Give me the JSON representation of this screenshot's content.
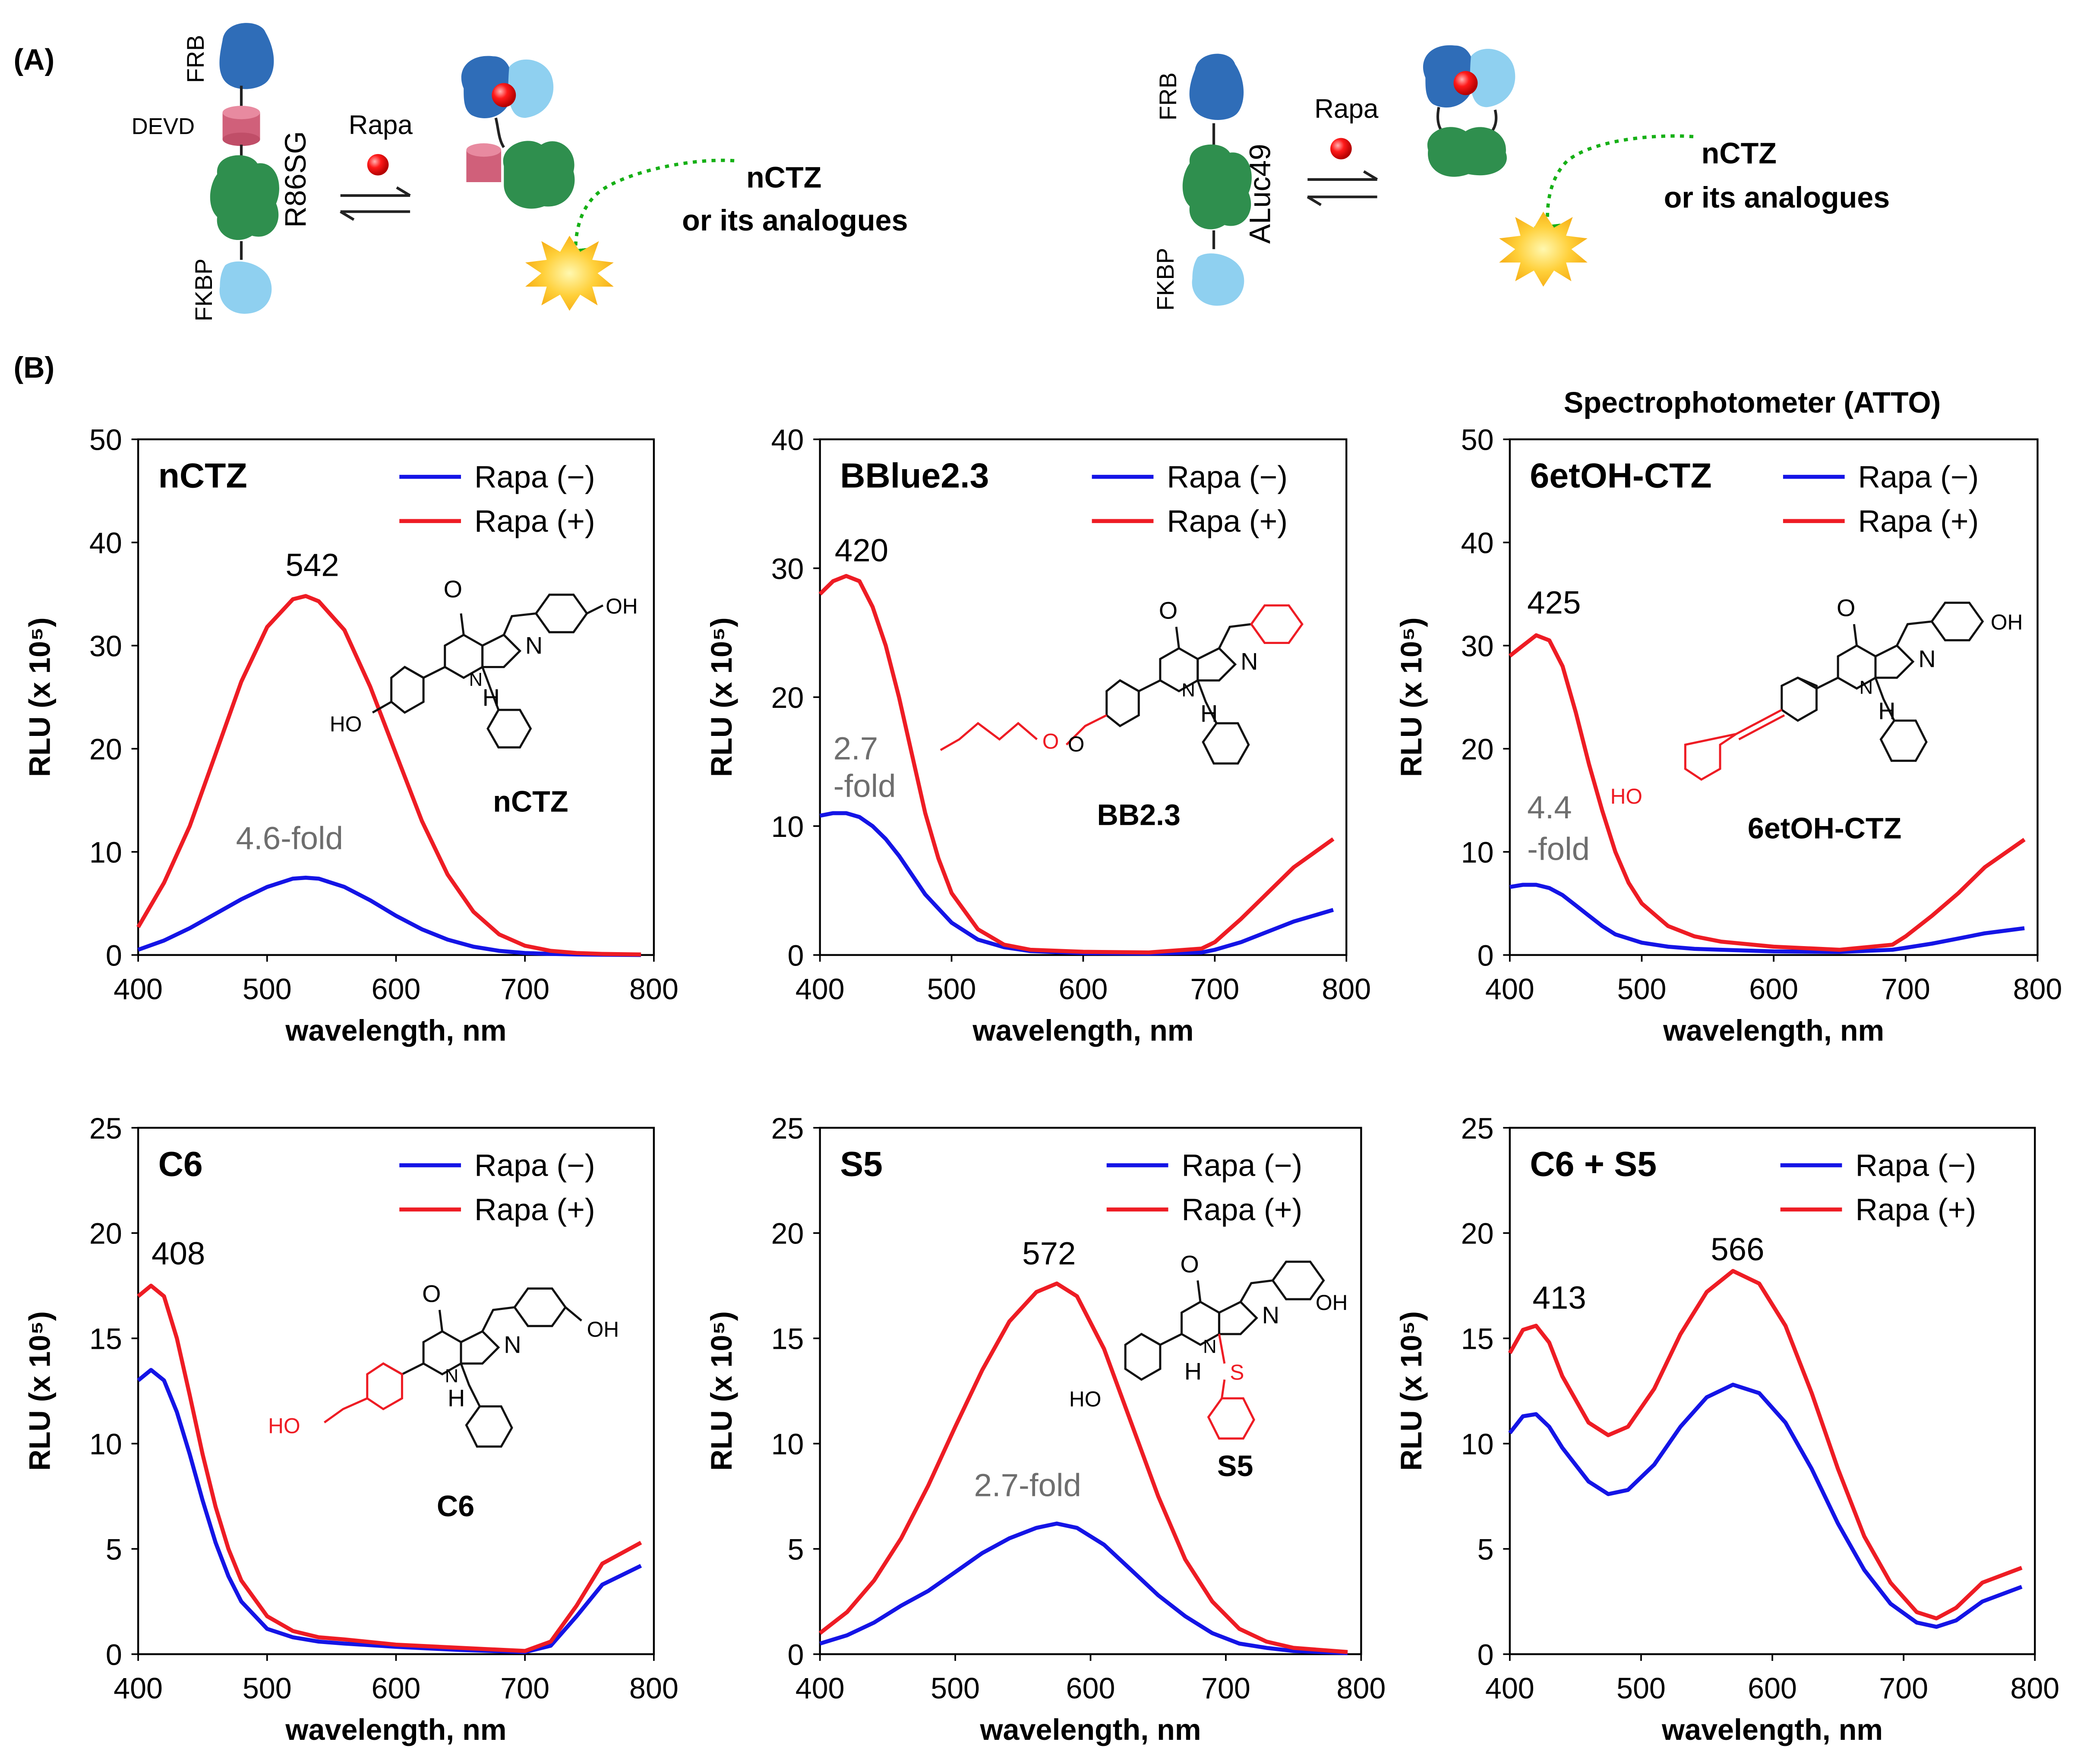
{
  "panel_labels": {
    "a": "(A)",
    "b": "(B)"
  },
  "schematic": {
    "left": {
      "frb": "FRB",
      "devd": "DEVD",
      "fkbp": "FKBP",
      "luciferase": "R86SG",
      "rapa": "Rapa",
      "substrate_line1": "nCTZ",
      "substrate_line2": "or its analogues"
    },
    "right": {
      "frb": "FRB",
      "fkbp": "FKBP",
      "luciferase": "ALuc49",
      "rapa": "Rapa",
      "substrate_line1": "nCTZ",
      "substrate_line2": "or its analogues"
    }
  },
  "instrument_label": "Spectrophotometer (ATTO)",
  "colors": {
    "rapa_minus": "#1414e6",
    "rapa_plus": "#ee1c24",
    "fold_text": "#6e6e6e",
    "luc_text": "#1e5e2e",
    "fkbp_text": "#2b3fe0",
    "highlight": "#ee1c24"
  },
  "chart_data": [
    {
      "type": "line",
      "title": "nCTZ",
      "xlabel": "wavelength, nm",
      "ylabel": "RLU (x 10⁵)",
      "xlim": [
        400,
        800
      ],
      "ylim": [
        0,
        50
      ],
      "yticks": [
        0,
        10,
        20,
        30,
        40,
        50
      ],
      "xticks": [
        400,
        500,
        600,
        700,
        800
      ],
      "peak_label": "542",
      "fold_label": "4.6-fold",
      "compound_label": "nCTZ",
      "series": [
        {
          "name": "Rapa (−)",
          "x": [
            400,
            420,
            440,
            460,
            480,
            500,
            520,
            530,
            540,
            560,
            580,
            600,
            620,
            640,
            660,
            680,
            700,
            720,
            740,
            760,
            790
          ],
          "y": [
            0.5,
            1.4,
            2.6,
            4.0,
            5.4,
            6.6,
            7.4,
            7.5,
            7.4,
            6.6,
            5.3,
            3.8,
            2.5,
            1.5,
            0.8,
            0.4,
            0.2,
            0.1,
            0.05,
            0.02,
            0.0
          ]
        },
        {
          "name": "Rapa (+)",
          "x": [
            400,
            420,
            440,
            460,
            480,
            500,
            520,
            530,
            540,
            560,
            580,
            600,
            620,
            640,
            660,
            680,
            700,
            720,
            740,
            760,
            790
          ],
          "y": [
            2.7,
            7.0,
            12.5,
            19.5,
            26.5,
            31.8,
            34.5,
            34.8,
            34.3,
            31.5,
            26.0,
            19.5,
            13.0,
            7.8,
            4.2,
            2.0,
            0.9,
            0.4,
            0.2,
            0.1,
            0.05
          ]
        }
      ]
    },
    {
      "type": "line",
      "title": "BBlue2.3",
      "xlabel": "wavelength, nm",
      "ylabel": "RLU (x 10⁵)",
      "xlim": [
        400,
        800
      ],
      "ylim": [
        0,
        40
      ],
      "yticks": [
        0,
        10,
        20,
        30,
        40
      ],
      "xticks": [
        400,
        500,
        600,
        700,
        800
      ],
      "peak_label": "420",
      "fold_label_line1": "2.7",
      "fold_label_line2": "-fold",
      "compound_label": "BB2.3",
      "series": [
        {
          "name": "Rapa (−)",
          "x": [
            400,
            410,
            420,
            430,
            440,
            450,
            460,
            470,
            480,
            500,
            520,
            540,
            560,
            600,
            650,
            690,
            700,
            720,
            740,
            760,
            790
          ],
          "y": [
            10.8,
            11.0,
            11.0,
            10.7,
            10.0,
            9.0,
            7.7,
            6.2,
            4.7,
            2.5,
            1.2,
            0.6,
            0.3,
            0.15,
            0.1,
            0.2,
            0.4,
            1.0,
            1.8,
            2.6,
            3.5
          ]
        },
        {
          "name": "Rapa (+)",
          "x": [
            400,
            410,
            420,
            430,
            440,
            450,
            460,
            470,
            480,
            490,
            500,
            520,
            540,
            560,
            600,
            650,
            690,
            700,
            720,
            740,
            760,
            790
          ],
          "y": [
            28.0,
            29.0,
            29.4,
            29.0,
            27.0,
            24.0,
            20.0,
            15.5,
            11.0,
            7.5,
            4.8,
            2.0,
            0.8,
            0.4,
            0.25,
            0.2,
            0.5,
            1.0,
            2.8,
            4.8,
            6.8,
            9.0
          ]
        }
      ]
    },
    {
      "type": "line",
      "title": "6etOH-CTZ",
      "xlabel": "wavelength, nm",
      "ylabel": "RLU (x 10⁵)",
      "xlim": [
        400,
        800
      ],
      "ylim": [
        0,
        50
      ],
      "yticks": [
        0,
        10,
        20,
        30,
        40,
        50
      ],
      "xticks": [
        400,
        500,
        600,
        700,
        800
      ],
      "peak_label": "425",
      "fold_label_line1": "4.4",
      "fold_label_line2": "-fold",
      "compound_label": "6etOH-CTZ",
      "series": [
        {
          "name": "Rapa (−)",
          "x": [
            400,
            410,
            420,
            430,
            440,
            450,
            460,
            470,
            480,
            500,
            520,
            540,
            560,
            600,
            650,
            690,
            700,
            720,
            740,
            760,
            790
          ],
          "y": [
            6.6,
            6.8,
            6.8,
            6.5,
            5.8,
            4.8,
            3.8,
            2.8,
            2.0,
            1.2,
            0.8,
            0.6,
            0.5,
            0.35,
            0.3,
            0.5,
            0.7,
            1.1,
            1.6,
            2.1,
            2.6
          ]
        },
        {
          "name": "Rapa (+)",
          "x": [
            400,
            410,
            420,
            430,
            440,
            450,
            460,
            470,
            480,
            490,
            500,
            520,
            540,
            560,
            600,
            650,
            690,
            700,
            720,
            740,
            760,
            790
          ],
          "y": [
            29.0,
            30.0,
            31.0,
            30.5,
            28.0,
            23.5,
            18.5,
            14.0,
            10.0,
            7.0,
            5.0,
            2.8,
            1.8,
            1.3,
            0.8,
            0.5,
            1.0,
            1.8,
            3.8,
            6.0,
            8.5,
            11.2
          ]
        }
      ]
    },
    {
      "type": "line",
      "title": "C6",
      "xlabel": "wavelength, nm",
      "ylabel": "RLU (x 10⁵)",
      "xlim": [
        400,
        800
      ],
      "ylim": [
        0,
        25
      ],
      "yticks": [
        0,
        5,
        10,
        15,
        20,
        25
      ],
      "xticks": [
        400,
        500,
        600,
        700,
        800
      ],
      "peak_label": "408",
      "compound_label": "C6",
      "series": [
        {
          "name": "Rapa (−)",
          "x": [
            400,
            410,
            420,
            430,
            440,
            450,
            460,
            470,
            480,
            500,
            520,
            540,
            560,
            600,
            650,
            700,
            720,
            740,
            760,
            790
          ],
          "y": [
            13.0,
            13.5,
            13.0,
            11.5,
            9.5,
            7.3,
            5.3,
            3.7,
            2.5,
            1.2,
            0.8,
            0.6,
            0.5,
            0.35,
            0.2,
            0.1,
            0.4,
            1.8,
            3.3,
            4.2
          ]
        },
        {
          "name": "Rapa (+)",
          "x": [
            400,
            410,
            420,
            430,
            440,
            450,
            460,
            470,
            480,
            500,
            520,
            540,
            560,
            600,
            650,
            700,
            720,
            740,
            760,
            790
          ],
          "y": [
            17.0,
            17.5,
            17.0,
            15.0,
            12.3,
            9.5,
            7.0,
            5.0,
            3.5,
            1.8,
            1.1,
            0.8,
            0.7,
            0.45,
            0.3,
            0.15,
            0.6,
            2.3,
            4.3,
            5.3
          ]
        }
      ]
    },
    {
      "type": "line",
      "title": "S5",
      "xlabel": "wavelength, nm",
      "ylabel": "RLU (x 10⁵)",
      "xlim": [
        400,
        800
      ],
      "ylim": [
        0,
        25
      ],
      "yticks": [
        0,
        5,
        10,
        15,
        20,
        25
      ],
      "xticks": [
        400,
        500,
        600,
        700,
        800
      ],
      "peak_label": "572",
      "fold_label": "2.7-fold",
      "compound_label": "S5",
      "series": [
        {
          "name": "Rapa (−)",
          "x": [
            400,
            420,
            440,
            460,
            480,
            500,
            520,
            540,
            560,
            575,
            590,
            610,
            630,
            650,
            670,
            690,
            710,
            730,
            750,
            790
          ],
          "y": [
            0.5,
            0.9,
            1.5,
            2.3,
            3.0,
            3.9,
            4.8,
            5.5,
            6.0,
            6.2,
            6.0,
            5.2,
            4.0,
            2.8,
            1.8,
            1.0,
            0.5,
            0.3,
            0.15,
            0.05
          ]
        },
        {
          "name": "Rapa (+)",
          "x": [
            400,
            420,
            440,
            460,
            480,
            500,
            520,
            540,
            560,
            575,
            590,
            610,
            630,
            650,
            670,
            690,
            710,
            730,
            750,
            790
          ],
          "y": [
            1.0,
            2.0,
            3.5,
            5.5,
            8.0,
            10.8,
            13.5,
            15.8,
            17.2,
            17.6,
            17.0,
            14.5,
            11.0,
            7.5,
            4.5,
            2.5,
            1.2,
            0.6,
            0.3,
            0.1
          ]
        }
      ]
    },
    {
      "type": "line",
      "title": "C6 + S5",
      "xlabel": "wavelength, nm",
      "ylabel": "RLU (x 10⁵)",
      "xlim": [
        400,
        800
      ],
      "ylim": [
        0,
        25
      ],
      "yticks": [
        0,
        5,
        10,
        15,
        20,
        25
      ],
      "xticks": [
        400,
        500,
        600,
        700,
        800
      ],
      "peak_label_1": "413",
      "peak_label_2": "566",
      "series": [
        {
          "name": "Rapa (−)",
          "x": [
            400,
            410,
            420,
            430,
            440,
            460,
            475,
            490,
            510,
            530,
            550,
            570,
            590,
            610,
            630,
            650,
            670,
            690,
            710,
            725,
            740,
            760,
            790
          ],
          "y": [
            10.5,
            11.3,
            11.4,
            10.8,
            9.8,
            8.2,
            7.6,
            7.8,
            9.0,
            10.8,
            12.2,
            12.8,
            12.4,
            11.0,
            8.8,
            6.2,
            4.0,
            2.4,
            1.5,
            1.3,
            1.6,
            2.5,
            3.2
          ]
        },
        {
          "name": "Rapa (+)",
          "x": [
            400,
            410,
            420,
            430,
            440,
            460,
            475,
            490,
            510,
            530,
            550,
            570,
            590,
            610,
            630,
            650,
            670,
            690,
            710,
            725,
            740,
            760,
            790
          ],
          "y": [
            14.3,
            15.4,
            15.6,
            14.8,
            13.2,
            11.0,
            10.4,
            10.8,
            12.6,
            15.2,
            17.2,
            18.2,
            17.6,
            15.6,
            12.4,
            8.8,
            5.6,
            3.4,
            2.0,
            1.7,
            2.2,
            3.4,
            4.1
          ]
        }
      ]
    }
  ]
}
